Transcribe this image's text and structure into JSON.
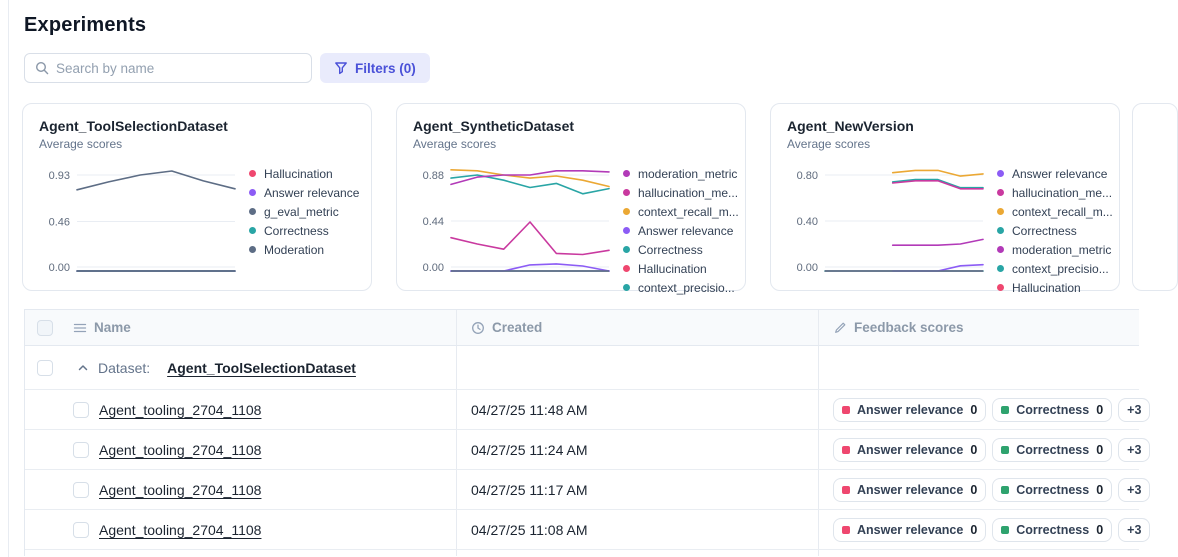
{
  "header": {
    "title": "Experiments"
  },
  "toolbar": {
    "search_placeholder": "Search by name",
    "filters_label": "Filters (0)"
  },
  "colors": {
    "accent": "#4a51d8",
    "rose": "#ef476f",
    "purple": "#8c5cf5",
    "slate": "#5d6d85",
    "teal": "#29a5a5",
    "amber": "#eba834",
    "magenta_pink": "#c9399f",
    "magenta_purple": "#b23ab8",
    "green": "#2ea36e"
  },
  "cards": [
    {
      "title": "Agent_ToolSelectionDataset",
      "subtitle": "Average scores",
      "legend": [
        {
          "label": "Hallucination",
          "color": "#ef476f"
        },
        {
          "label": "Answer relevance",
          "color": "#8c5cf5"
        },
        {
          "label": "g_eval_metric",
          "color": "#5d6d85"
        },
        {
          "label": "Correctness",
          "color": "#29a5a5"
        },
        {
          "label": "Moderation",
          "color": "#5d6d85"
        }
      ],
      "chart_data": {
        "type": "line",
        "yticks": [
          "0.93",
          "0.46",
          "0.00"
        ],
        "ylim": [
          0,
          1.0
        ],
        "x_count": 6,
        "grid": true,
        "legend_position": "right",
        "series": [
          {
            "name": "Hallucination",
            "color": "#ef476f",
            "values": [
              0,
              0,
              0,
              0,
              0,
              0
            ]
          },
          {
            "name": "Answer relevance",
            "color": "#8c5cf5",
            "values": [
              0,
              0,
              0,
              0,
              0,
              0
            ]
          },
          {
            "name": "Correctness",
            "color": "#29a5a5",
            "values": [
              0,
              0,
              0,
              0,
              0,
              0
            ]
          },
          {
            "name": "Moderation",
            "color": "#5d6d85",
            "values": [
              0,
              0,
              0,
              0,
              0,
              0
            ]
          },
          {
            "name": "g_eval_metric",
            "color": "#5d6d85",
            "values": [
              0.78,
              0.86,
              0.93,
              0.97,
              0.87,
              0.79
            ]
          }
        ]
      }
    },
    {
      "title": "Agent_SyntheticDataset",
      "subtitle": "Average scores",
      "legend": [
        {
          "label": "moderation_metric",
          "color": "#b23ab8"
        },
        {
          "label": "hallucination_me...",
          "color": "#c9399f"
        },
        {
          "label": "context_recall_m...",
          "color": "#eba834"
        },
        {
          "label": "Answer relevance",
          "color": "#8c5cf5"
        },
        {
          "label": "Correctness",
          "color": "#29a5a5"
        },
        {
          "label": "Hallucination",
          "color": "#ef476f"
        },
        {
          "label": "context_precisio...",
          "color": "#29a5a5"
        }
      ],
      "chart_data": {
        "type": "line",
        "yticks": [
          "0.88",
          "0.44",
          "0.00"
        ],
        "ylim": [
          0,
          1.0
        ],
        "x_count": 7,
        "grid": true,
        "legend_position": "right",
        "series": [
          {
            "name": "Hallucination",
            "color": "#ef476f",
            "values": [
              0,
              0,
              0,
              0,
              0,
              0,
              0
            ]
          },
          {
            "name": "context_precisio...",
            "color": "#29a5a5",
            "values": [
              0,
              0,
              0,
              0,
              0,
              0,
              0
            ]
          },
          {
            "name": "Answer relevance",
            "color": "#8c5cf5",
            "values": [
              0,
              0,
              0,
              0.02,
              0.03,
              0.01,
              0
            ]
          },
          {
            "name": "Correctness",
            "color": "#29a5a5",
            "values": [
              0.85,
              0.88,
              0.83,
              0.76,
              0.8,
              0.7,
              0.75
            ]
          },
          {
            "name": "context_recall_m...",
            "color": "#eba834",
            "values": [
              0.93,
              0.92,
              0.88,
              0.85,
              0.87,
              0.83,
              0.77
            ]
          },
          {
            "name": "hallucination_me...",
            "color": "#c9399f",
            "values": [
              0.28,
              0.22,
              0.17,
              0.43,
              0.13,
              0.12,
              0.16
            ]
          },
          {
            "name": "moderation_metric",
            "color": "#b23ab8",
            "values": [
              0.79,
              0.86,
              0.88,
              0.88,
              0.92,
              0.92,
              0.91
            ]
          }
        ]
      }
    },
    {
      "title": "Agent_NewVersion",
      "subtitle": "Average scores",
      "legend": [
        {
          "label": "Answer relevance",
          "color": "#8c5cf5"
        },
        {
          "label": "hallucination_me...",
          "color": "#c9399f"
        },
        {
          "label": "context_recall_m...",
          "color": "#eba834"
        },
        {
          "label": "Correctness",
          "color": "#29a5a5"
        },
        {
          "label": "moderation_metric",
          "color": "#b23ab8"
        },
        {
          "label": "context_precisio...",
          "color": "#29a5a5"
        },
        {
          "label": "Hallucination",
          "color": "#ef476f"
        }
      ],
      "chart_data": {
        "type": "line",
        "yticks": [
          "0.80",
          "0.40",
          "0.00"
        ],
        "ylim": [
          0,
          1.0
        ],
        "x_count": 8,
        "grid": true,
        "legend_position": "right",
        "series": [
          {
            "name": "Hallucination",
            "color": "#ef476f",
            "values": [
              0,
              0,
              0,
              0,
              0,
              0,
              0,
              0
            ]
          },
          {
            "name": "context_precisio...",
            "color": "#29a5a5",
            "values": [
              0,
              0,
              0,
              0,
              0,
              0,
              0,
              0
            ]
          },
          {
            "name": "Answer relevance",
            "color": "#8c5cf5",
            "values": [
              null,
              null,
              null,
              0,
              0,
              0,
              0.01,
              0.02
            ]
          },
          {
            "name": "Correctness",
            "color": "#29a5a5",
            "values": [
              null,
              null,
              null,
              0.74,
              0.76,
              0.76,
              0.69,
              0.69
            ]
          },
          {
            "name": "hallucination_me...",
            "color": "#c9399f",
            "values": [
              null,
              null,
              null,
              0.73,
              0.75,
              0.75,
              0.68,
              0.68
            ]
          },
          {
            "name": "context_recall_m...",
            "color": "#eba834",
            "values": [
              null,
              null,
              null,
              0.82,
              0.84,
              0.84,
              0.79,
              0.81
            ]
          },
          {
            "name": "moderation_metric",
            "color": "#b23ab8",
            "values": [
              null,
              null,
              null,
              0.19,
              0.19,
              0.19,
              0.2,
              0.24
            ]
          }
        ]
      }
    }
  ],
  "table": {
    "columns": [
      {
        "label": "Name",
        "icon": "list-icon"
      },
      {
        "label": "Created",
        "icon": "clock-icon"
      },
      {
        "label": "Feedback scores",
        "icon": "pen-icon"
      }
    ],
    "group": {
      "label": "Dataset:",
      "name": "Agent_ToolSelectionDataset"
    },
    "rows": [
      {
        "name": "Agent_tooling_2704_1108",
        "created": "04/27/25 11:48 AM",
        "badges": [
          {
            "label": "Answer relevance",
            "value": "0",
            "color": "#ef476f"
          },
          {
            "label": "Correctness",
            "value": "0",
            "color": "#2ea36e"
          }
        ],
        "more": "+3"
      },
      {
        "name": "Agent_tooling_2704_1108",
        "created": "04/27/25 11:24 AM",
        "badges": [
          {
            "label": "Answer relevance",
            "value": "0",
            "color": "#ef476f"
          },
          {
            "label": "Correctness",
            "value": "0",
            "color": "#2ea36e"
          }
        ],
        "more": "+3"
      },
      {
        "name": "Agent_tooling_2704_1108",
        "created": "04/27/25 11:17 AM",
        "badges": [
          {
            "label": "Answer relevance",
            "value": "0",
            "color": "#ef476f"
          },
          {
            "label": "Correctness",
            "value": "0",
            "color": "#2ea36e"
          }
        ],
        "more": "+3"
      },
      {
        "name": "Agent_tooling_2704_1108",
        "created": "04/27/25 11:08 AM",
        "badges": [
          {
            "label": "Answer relevance",
            "value": "0",
            "color": "#ef476f"
          },
          {
            "label": "Correctness",
            "value": "0",
            "color": "#2ea36e"
          }
        ],
        "more": "+3"
      }
    ]
  }
}
